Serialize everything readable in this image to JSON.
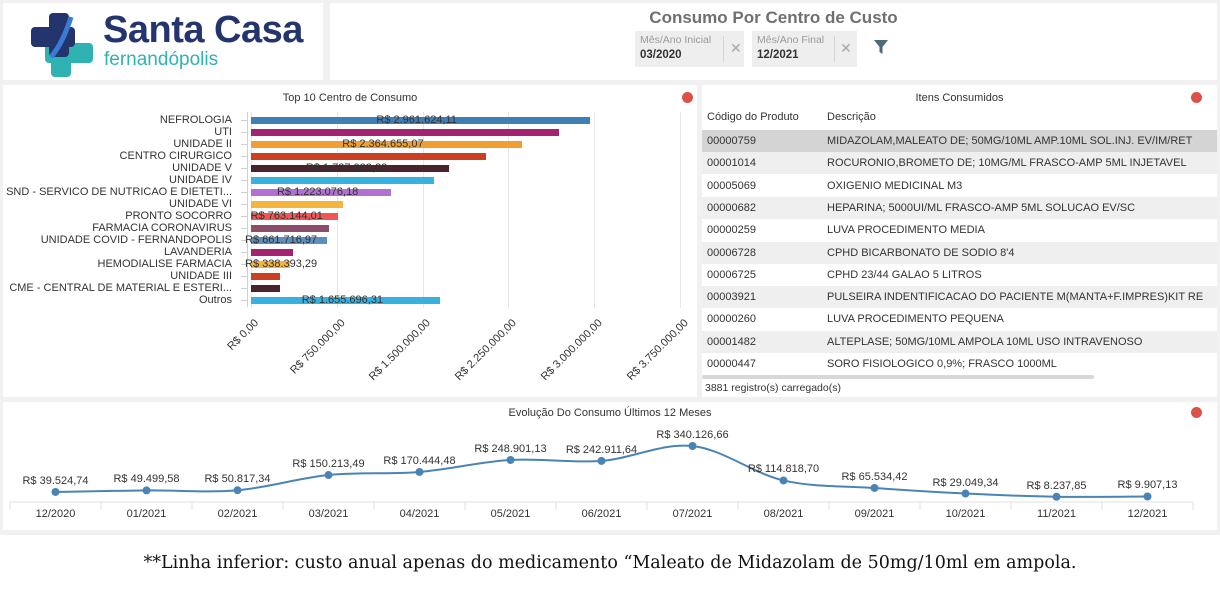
{
  "logo": {
    "title": "Santa Casa",
    "subtitle": "fernandópolis",
    "colors": {
      "primary": "#24356e",
      "accent": "#2fb3b2"
    }
  },
  "header": {
    "title": "Consumo Por Centro de Custo",
    "filters": [
      {
        "label": "Mês/Ano Inicial",
        "value": "03/2020",
        "clear_icon": "close-icon"
      },
      {
        "label": "Mês/Ano Final",
        "value": "12/2021",
        "clear_icon": "close-icon"
      }
    ],
    "filter_button_icon": "filter-icon"
  },
  "bar_panel": {
    "title": "Top 10 Centro de Consumo",
    "status_color": "#dc5148"
  },
  "table_panel": {
    "title": "Itens Consumidos",
    "columns": [
      "Código do Produto",
      "Descrição"
    ],
    "rows": [
      {
        "code": "00000759",
        "desc": "MIDAZOLAM,MALEATO DE; 50MG/10ML AMP.10ML SOL.INJ. EV/IM/RET",
        "selected": true
      },
      {
        "code": "00001014",
        "desc": "ROCURONIO,BROMETO DE; 10MG/ML FRASCO-AMP 5ML INJETAVEL"
      },
      {
        "code": "00005069",
        "desc": "OXIGENIO MEDICINAL M3"
      },
      {
        "code": "00000682",
        "desc": "HEPARINA; 5000UI/ML FRASCO-AMP 5ML SOLUCAO EV/SC"
      },
      {
        "code": "00000259",
        "desc": "LUVA PROCEDIMENTO MEDIA"
      },
      {
        "code": "00006728",
        "desc": "CPHD BICARBONATO DE SODIO 8'4"
      },
      {
        "code": "00006725",
        "desc": "CPHD 23/44 GALAO 5 LITROS"
      },
      {
        "code": "00003921",
        "desc": "PULSEIRA INDENTIFICACAO DO PACIENTE M(MANTA+F.IMPRES)KIT RE"
      },
      {
        "code": "00000260",
        "desc": "LUVA PROCEDIMENTO PEQUENA"
      },
      {
        "code": "00001482",
        "desc": "ALTEPLASE; 50MG/10ML AMPOLA 10ML USO INTRAVENOSO"
      },
      {
        "code": "00000447",
        "desc": "SORO FISIOLOGICO 0,9%; FRASCO 1000ML"
      }
    ],
    "footer": "3881 registro(s) carregado(s)"
  },
  "line_panel": {
    "title": "Evolução Do Consumo Últimos 12 Meses"
  },
  "footnote": "**Linha inferior: custo anual apenas do medicamento “Maleato de Midazolam de 50mg/10ml em ampola.",
  "chart_data": [
    {
      "type": "bar",
      "orientation": "horizontal",
      "title": "Top 10 Centro de Consumo",
      "categories": [
        "NEFROLOGIA",
        "UTI",
        "UNIDADE II",
        "CENTRO CIRURGICO",
        "UNIDADE V",
        "UNIDADE IV",
        "SND - SERVICO DE NUTRICAO E DIETETI...",
        "UNIDADE VI",
        "PRONTO SOCORRO",
        "FARMACIA CORONAVIRUS",
        "UNIDADE COVID - FERNANDOPOLIS",
        "LAVANDERIA",
        "HEMODIALISE FARMACIA",
        "UNIDADE III",
        "CME - CENTRAL DE MATERIAL E ESTERI...",
        "Outros"
      ],
      "values": [
        2961624.11,
        2695000,
        2364655.07,
        2050000,
        1727923.22,
        1596000,
        1223076.18,
        802000,
        763144.01,
        680000,
        661716.97,
        366000,
        338393.29,
        253000,
        253000,
        1655696.31
      ],
      "data_labels": [
        "R$ 2.961.624,11",
        "",
        "R$ 2.364.655,07",
        "",
        "R$ 1.727.923,22",
        "",
        "R$ 1.223.076,18",
        "",
        "R$ 763.144,01",
        "",
        "R$ 661.716,97",
        "",
        "R$ 338.393,29",
        "",
        "",
        "R$ 1.655.696,31"
      ],
      "colors": [
        "#3f7fb5",
        "#a4226f",
        "#f0a030",
        "#cc4022",
        "#4a232c",
        "#37b2df",
        "#b270d2",
        "#f5b43c",
        "#f15656",
        "#8c4d68",
        "#5b8fbe",
        "#a4226f",
        "#f5b43c",
        "#cc4022",
        "#4a232c",
        "#37b2df"
      ],
      "xlim": [
        0,
        3750000
      ],
      "x_ticks": [
        0,
        750000,
        1500000,
        2250000,
        3000000,
        3750000
      ],
      "x_tick_labels": [
        "R$ 0,00",
        "R$ 750.000,00",
        "R$ 1.500.000,00",
        "R$ 2.250.000,00",
        "R$ 3.000.000,00",
        "R$ 3.750.000,00"
      ],
      "grid": true
    },
    {
      "type": "line",
      "title": "Evolução Do Consumo Últimos 12 Meses",
      "categories": [
        "12/2020",
        "01/2021",
        "02/2021",
        "03/2021",
        "04/2021",
        "05/2021",
        "06/2021",
        "07/2021",
        "08/2021",
        "09/2021",
        "10/2021",
        "11/2021",
        "12/2021"
      ],
      "values": [
        39524.74,
        49499.58,
        50817.34,
        150213.49,
        170444.48,
        248901.13,
        242911.64,
        340126.66,
        114818.7,
        65534.42,
        29049.34,
        8237.85,
        9907.13
      ],
      "data_labels": [
        "R$ 39.524,74",
        "R$ 49.499,58",
        "R$ 50.817,34",
        "R$ 150.213,49",
        "R$ 170.444,48",
        "R$ 248.901,13",
        "R$ 242.911,64",
        "R$ 340.126,66",
        "R$ 114.818,70",
        "R$ 65.534,42",
        "R$ 29.049,34",
        "R$ 8.237,85",
        "R$ 9.907,13"
      ],
      "color": "#4a84b4",
      "ylim": [
        0,
        340126.66
      ]
    }
  ]
}
